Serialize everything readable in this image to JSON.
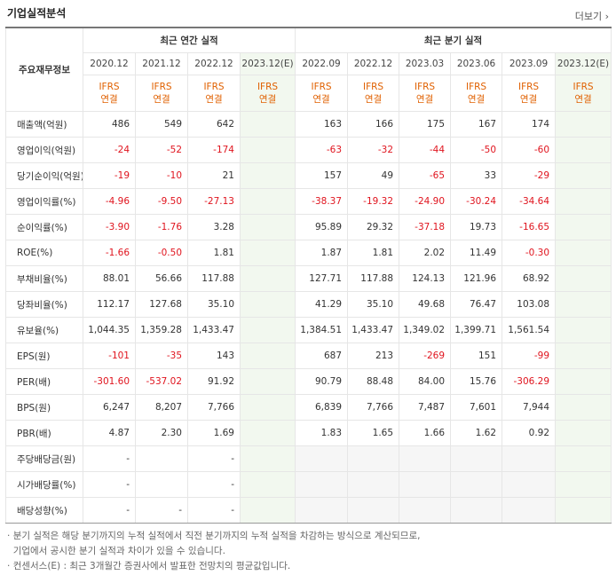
{
  "header": {
    "title": "기업실적분석",
    "more": "더보기"
  },
  "table": {
    "label_header": "주요재무정보",
    "annual_header": "최근 연간 실적",
    "quarter_header": "최근 분기 실적",
    "columns": [
      {
        "period": "2020.12",
        "standard": "IFRS",
        "basis": "연결"
      },
      {
        "period": "2021.12",
        "standard": "IFRS",
        "basis": "연결"
      },
      {
        "period": "2022.12",
        "standard": "IFRS",
        "basis": "연결"
      },
      {
        "period": "2023.12(E)",
        "standard": "IFRS",
        "basis": "연결"
      },
      {
        "period": "2022.09",
        "standard": "IFRS",
        "basis": "연결"
      },
      {
        "period": "2022.12",
        "standard": "IFRS",
        "basis": "연결"
      },
      {
        "period": "2023.03",
        "standard": "IFRS",
        "basis": "연결"
      },
      {
        "period": "2023.06",
        "standard": "IFRS",
        "basis": "연결"
      },
      {
        "period": "2023.09",
        "standard": "IFRS",
        "basis": "연결"
      },
      {
        "period": "2023.12(E)",
        "standard": "IFRS",
        "basis": "연결"
      }
    ],
    "rows": [
      {
        "label": "매출액(억원)",
        "values": [
          "486",
          "549",
          "642",
          null,
          "163",
          "166",
          "175",
          "167",
          "174",
          null
        ]
      },
      {
        "label": "영업이익(억원)",
        "values": [
          "-24",
          "-52",
          "-174",
          null,
          "-63",
          "-32",
          "-44",
          "-50",
          "-60",
          null
        ]
      },
      {
        "label": "당기순이익(억원)",
        "values": [
          "-19",
          "-10",
          "21",
          null,
          "157",
          "49",
          "-65",
          "33",
          "-29",
          null
        ]
      },
      {
        "label": "영업이익률(%)",
        "values": [
          "-4.96",
          "-9.50",
          "-27.13",
          null,
          "-38.37",
          "-19.32",
          "-24.90",
          "-30.24",
          "-34.64",
          null
        ]
      },
      {
        "label": "순이익률(%)",
        "values": [
          "-3.90",
          "-1.76",
          "3.28",
          null,
          "95.89",
          "29.32",
          "-37.18",
          "19.73",
          "-16.65",
          null
        ]
      },
      {
        "label": "ROE(%)",
        "values": [
          "-1.66",
          "-0.50",
          "1.81",
          null,
          "1.87",
          "1.81",
          "2.02",
          "11.49",
          "-0.30",
          null
        ]
      },
      {
        "label": "부채비율(%)",
        "values": [
          "88.01",
          "56.66",
          "117.88",
          null,
          "127.71",
          "117.88",
          "124.13",
          "121.96",
          "68.92",
          null
        ]
      },
      {
        "label": "당좌비율(%)",
        "values": [
          "112.17",
          "127.68",
          "35.10",
          null,
          "41.29",
          "35.10",
          "49.68",
          "76.47",
          "103.08",
          null
        ]
      },
      {
        "label": "유보율(%)",
        "values": [
          "1,044.35",
          "1,359.28",
          "1,433.47",
          null,
          "1,384.51",
          "1,433.47",
          "1,349.02",
          "1,399.71",
          "1,561.54",
          null
        ]
      },
      {
        "label": "EPS(원)",
        "values": [
          "-101",
          "-35",
          "143",
          null,
          "687",
          "213",
          "-269",
          "151",
          "-99",
          null
        ]
      },
      {
        "label": "PER(배)",
        "values": [
          "-301.60",
          "-537.02",
          "91.92",
          null,
          "90.79",
          "88.48",
          "84.00",
          "15.76",
          "-306.29",
          null
        ]
      },
      {
        "label": "BPS(원)",
        "values": [
          "6,247",
          "8,207",
          "7,766",
          null,
          "6,839",
          "7,766",
          "7,487",
          "7,601",
          "7,944",
          null
        ]
      },
      {
        "label": "PBR(배)",
        "values": [
          "4.87",
          "2.30",
          "1.69",
          null,
          "1.83",
          "1.65",
          "1.66",
          "1.62",
          "0.92",
          null
        ]
      },
      {
        "label": "주당배당금(원)",
        "values": [
          "-",
          null,
          "-",
          null,
          null,
          null,
          null,
          null,
          null,
          null
        ]
      },
      {
        "label": "시가배당률(%)",
        "values": [
          "-",
          null,
          "-",
          null,
          null,
          null,
          null,
          null,
          null,
          null
        ]
      },
      {
        "label": "배당성향(%)",
        "values": [
          "-",
          "-",
          "-",
          null,
          null,
          null,
          null,
          null,
          null,
          null
        ]
      }
    ]
  },
  "notes": [
    "분기 실적은 해당 분기까지의 누적 실적에서 직전 분기까지의 누적 실적을 차감하는 방식으로 계산되므로,",
    "기업에서 공시한 분기 실적과 차이가 있을 수 있습니다.",
    "컨센서스(E) : 최근 3개월간 증권사에서 발표한 전망치의 평균값입니다."
  ]
}
